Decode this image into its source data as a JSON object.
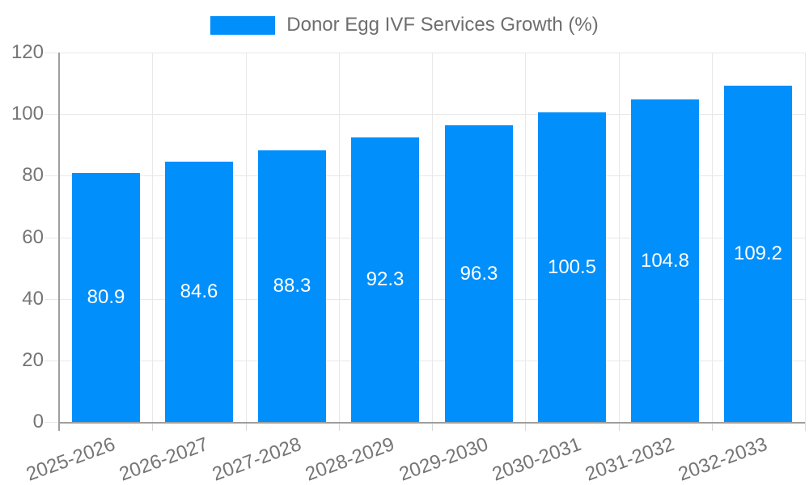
{
  "legend": {
    "label": "Donor Egg IVF Services Growth (%)"
  },
  "chart_data": {
    "type": "bar",
    "title": "Donor Egg IVF Services Growth (%)",
    "series_name": "Donor Egg IVF Services Growth (%)",
    "categories": [
      "2025-2026",
      "2026-2027",
      "2027-2028",
      "2028-2029",
      "2029-2030",
      "2030-2031",
      "2031-2032",
      "2032-2033"
    ],
    "values": [
      80.9,
      84.6,
      88.3,
      92.3,
      96.3,
      100.5,
      104.8,
      109.2
    ],
    "value_labels": [
      "80.9",
      "84.6",
      "88.3",
      "92.3",
      "96.3",
      "100.5",
      "104.8",
      "109.2"
    ],
    "xlabel": "",
    "ylabel": "",
    "ylim": [
      0,
      120
    ],
    "yticks": [
      0,
      20,
      40,
      60,
      80,
      100,
      120
    ],
    "grid": true,
    "legend_position": "top",
    "colors": {
      "bar": "#008FFB",
      "value_label": "#FFFFFF",
      "grid_line": "#E8E8E8",
      "axis_line": "#9E9E9E",
      "x_tick_mark": "#D9D9D9",
      "tick_text": "#757575",
      "legend_text": "#6E6E6E",
      "background": "#FFFFFF"
    }
  }
}
